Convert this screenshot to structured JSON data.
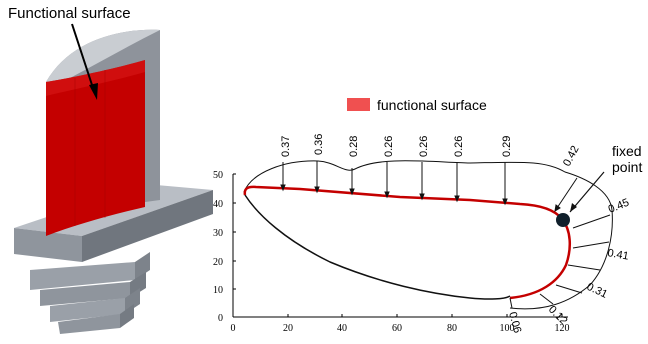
{
  "left_figure": {
    "title": "Functional surface"
  },
  "legend": {
    "label": "functional surface",
    "swatch_color": "#f05050"
  },
  "colors": {
    "surface_red": "#c40000",
    "blade_gray": "#8e939b",
    "marker": "#10202c",
    "inner_profile": "#111111",
    "outer_profile": "#111111"
  },
  "plot": {
    "x_ticks": [
      "0",
      "20",
      "40",
      "60",
      "80",
      "100",
      "120"
    ],
    "y_ticks": [
      "0",
      "10",
      "20",
      "30",
      "40",
      "50"
    ],
    "fixed_point_label_line1": "fixed",
    "fixed_point_label_line2": "point",
    "deviation_labels": [
      "0.37",
      "0.36",
      "0.28",
      "0.26",
      "0.26",
      "0.26",
      "0.29",
      "0.42",
      "0.45",
      "0.41",
      "0.31",
      "0.12",
      "0.06"
    ]
  }
}
